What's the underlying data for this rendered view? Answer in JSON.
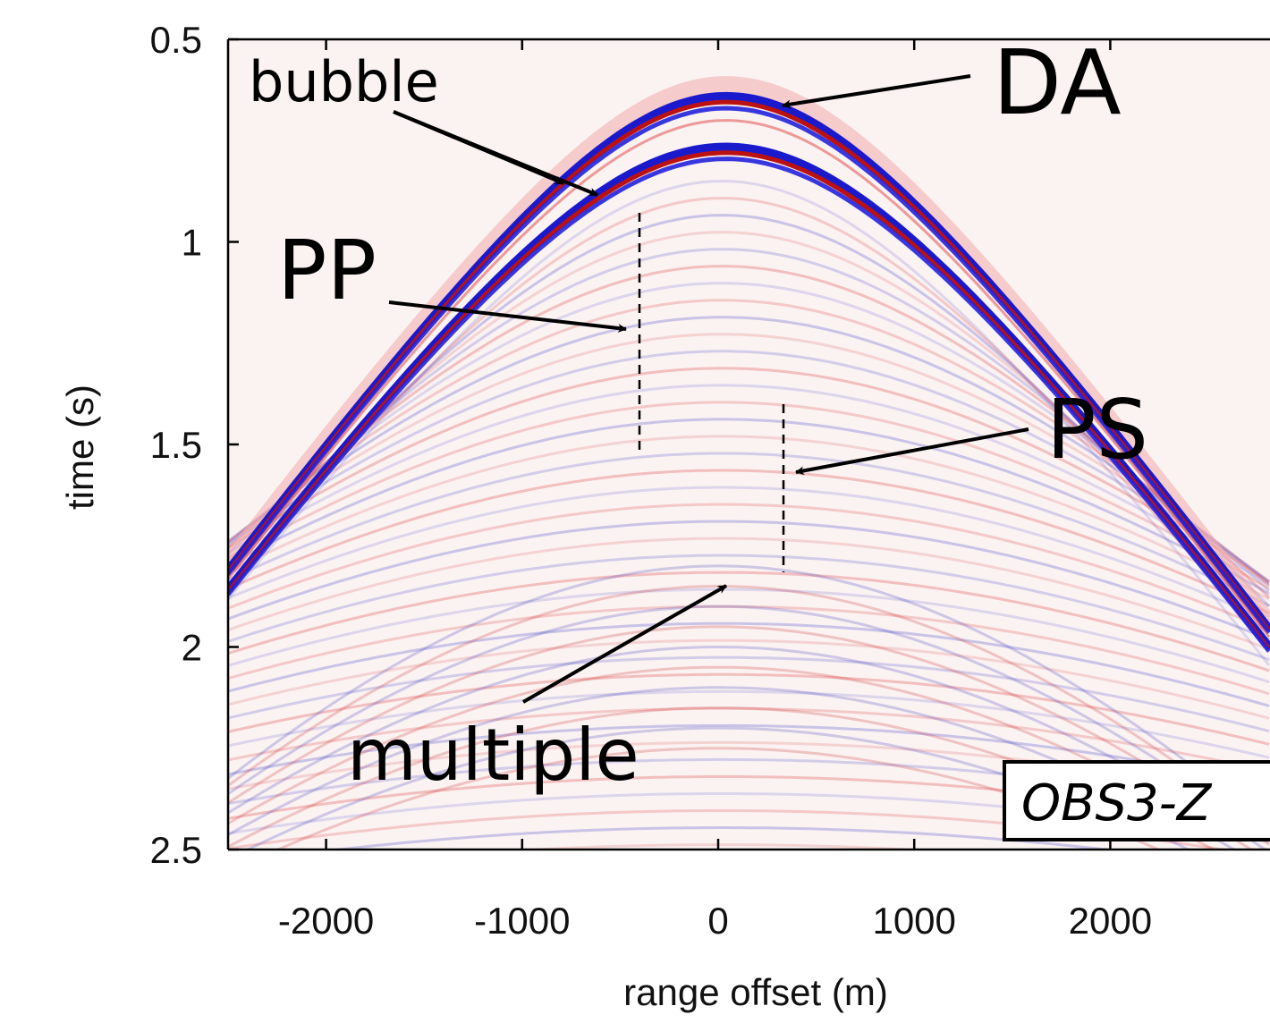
{
  "chart_data": {
    "type": "seismic-section",
    "xlabel": "range offset (m)",
    "ylabel": "time (s)",
    "xlim": [
      -2500,
      2800
    ],
    "xticks": [
      -2000,
      -1000,
      0,
      1000,
      2000
    ],
    "ylim": [
      0.5,
      2.5
    ],
    "yticks": [
      0.5,
      1,
      1.5,
      2,
      2.5
    ],
    "y_inverted": true,
    "annotations": [
      "bubble",
      "DA",
      "PP",
      "PS",
      "multiple"
    ],
    "station_label": "OBS3-Z"
  }
}
